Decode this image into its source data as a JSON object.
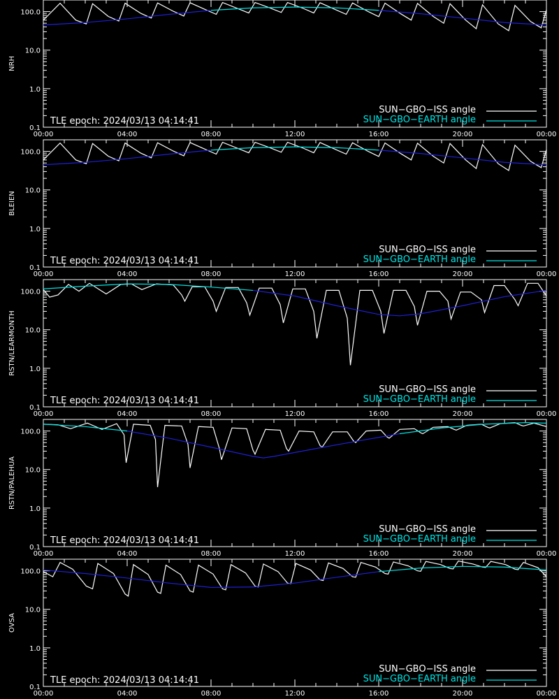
{
  "colors": {
    "background": "#000000",
    "axes": "#ffffff",
    "iss_series": "#ffffff",
    "earth_series_above_threshold": "#00e5e5",
    "earth_series_below_threshold": "#1f1fd6",
    "iss_series_faded": "#8a8a8a"
  },
  "legend": {
    "iss_label": "SUN−GBO−ISS angle",
    "earth_label": "SUN−GBO−EARTH angle"
  },
  "epoch_text": "TLE epoch: 2024/03/13 04:14:41",
  "x_ticks": [
    "00:00",
    "04:00",
    "08:00",
    "12:00",
    "16:00",
    "20:00",
    "00:00"
  ],
  "y_ticks": [
    "100.0",
    "10.0",
    "1.0",
    "0.1"
  ],
  "chart_data": [
    {
      "type": "line",
      "title": "",
      "xlabel": "",
      "ylabel": "NRH",
      "xlim_hours": [
        0,
        24
      ],
      "ylim": [
        0.1,
        200
      ],
      "y_scale": "log",
      "legend_placement": "bottom-right",
      "series": [
        {
          "name": "SUN−GBO−EARTH angle",
          "x_hours": [
            0,
            2,
            4,
            6,
            8,
            10,
            12,
            14,
            16,
            18,
            20,
            22,
            24
          ],
          "values": [
            45,
            52,
            65,
            85,
            108,
            125,
            131,
            125,
            108,
            88,
            68,
            52,
            45
          ]
        },
        {
          "name": "SUN−GBO−ISS angle",
          "x_hours": [
            0,
            0.8,
            1.55,
            2.05,
            2.35,
            3.1,
            3.6,
            3.9,
            4.65,
            5.15,
            5.45,
            6.2,
            6.7,
            7.0,
            7.75,
            8.25,
            8.55,
            9.3,
            9.8,
            10.1,
            10.85,
            11.35,
            11.65,
            12.4,
            12.9,
            13.2,
            13.95,
            14.45,
            14.75,
            15.5,
            16.0,
            16.3,
            17.05,
            17.55,
            17.85,
            18.6,
            19.1,
            19.4,
            20.15,
            20.65,
            20.95,
            21.7,
            22.2,
            22.5,
            23.25,
            23.75,
            24
          ],
          "values": [
            60,
            165,
            60,
            48,
            160,
            75,
            57,
            165,
            90,
            68,
            168,
            102,
            77,
            170,
            112,
            85,
            172,
            118,
            92,
            172,
            122,
            95,
            172,
            121,
            92,
            170,
            112,
            85,
            168,
            100,
            74,
            166,
            88,
            60,
            163,
            75,
            50,
            160,
            60,
            36,
            150,
            48,
            32,
            145,
            55,
            38,
            110
          ]
        }
      ]
    },
    {
      "type": "line",
      "title": "",
      "xlabel": "",
      "ylabel": "BLEIEN",
      "xlim_hours": [
        0,
        24
      ],
      "ylim": [
        0.1,
        200
      ],
      "y_scale": "log",
      "legend_placement": "bottom-right",
      "series": [
        {
          "name": "SUN−GBO−EARTH angle",
          "x_hours": [
            0,
            2,
            4,
            6,
            8,
            10,
            12,
            14,
            16,
            18,
            20,
            22,
            24
          ],
          "values": [
            45,
            52,
            65,
            85,
            108,
            125,
            131,
            125,
            108,
            88,
            68,
            52,
            45
          ]
        },
        {
          "name": "SUN−GBO−ISS angle",
          "x_hours": [
            0,
            0.8,
            1.55,
            2.05,
            2.35,
            3.1,
            3.6,
            3.9,
            4.65,
            5.15,
            5.45,
            6.2,
            6.7,
            7.0,
            7.75,
            8.25,
            8.55,
            9.3,
            9.8,
            10.1,
            10.85,
            11.35,
            11.65,
            12.4,
            12.9,
            13.2,
            13.95,
            14.45,
            14.75,
            15.5,
            16.0,
            16.3,
            17.05,
            17.55,
            17.85,
            18.6,
            19.1,
            19.4,
            20.15,
            20.65,
            20.95,
            21.7,
            22.2,
            22.5,
            23.25,
            23.75,
            24
          ],
          "values": [
            60,
            165,
            60,
            48,
            160,
            75,
            57,
            165,
            90,
            68,
            168,
            102,
            77,
            170,
            112,
            85,
            172,
            118,
            92,
            172,
            122,
            95,
            172,
            121,
            92,
            170,
            112,
            85,
            168,
            100,
            74,
            166,
            88,
            60,
            163,
            75,
            50,
            160,
            60,
            36,
            150,
            48,
            32,
            145,
            55,
            38,
            110
          ]
        }
      ]
    },
    {
      "type": "line",
      "title": "",
      "xlabel": "",
      "ylabel": "RSTN/LEARMONTH",
      "xlim_hours": [
        0,
        24
      ],
      "ylim": [
        0.1,
        200
      ],
      "y_scale": "log",
      "legend_placement": "bottom-right",
      "series": [
        {
          "name": "SUN−GBO−EARTH angle",
          "x_hours": [
            0,
            2,
            4,
            6,
            8,
            10,
            12,
            14,
            16,
            17,
            18,
            20,
            22,
            24
          ],
          "values": [
            115,
            135,
            155,
            150,
            128,
            105,
            75,
            42,
            25,
            23,
            26,
            42,
            72,
            105
          ]
        },
        {
          "name": "SUN−GBO−ISS angle",
          "x_hours": [
            0,
            0.3,
            0.7,
            1.2,
            1.7,
            2.2,
            3.0,
            3.7,
            4.2,
            4.7,
            5.4,
            6.2,
            6.6,
            6.75,
            7.1,
            7.7,
            8.1,
            8.25,
            8.7,
            9.3,
            9.7,
            9.85,
            10.3,
            10.9,
            11.3,
            11.45,
            11.9,
            12.5,
            12.9,
            13.05,
            13.5,
            14.1,
            14.5,
            14.65,
            15.1,
            15.7,
            16.1,
            16.25,
            16.7,
            17.3,
            17.7,
            17.85,
            18.3,
            18.9,
            19.3,
            19.45,
            19.9,
            20.4,
            20.9,
            21.05,
            21.5,
            22.0,
            22.5,
            22.65,
            23.1,
            23.6,
            24
          ],
          "values": [
            110,
            70,
            80,
            150,
            100,
            160,
            85,
            150,
            155,
            110,
            155,
            145,
            80,
            55,
            130,
            130,
            55,
            30,
            125,
            125,
            50,
            24,
            120,
            120,
            45,
            15,
            115,
            115,
            30,
            6,
            105,
            105,
            20,
            1.2,
            105,
            105,
            30,
            8,
            105,
            105,
            40,
            13,
            100,
            100,
            55,
            19,
            95,
            95,
            60,
            28,
            140,
            140,
            60,
            42,
            160,
            160,
            75
          ]
        }
      ]
    },
    {
      "type": "line",
      "title": "",
      "xlabel": "",
      "ylabel": "RSTN/PALEHUA",
      "xlim_hours": [
        0,
        24
      ],
      "ylim": [
        0.1,
        200
      ],
      "y_scale": "log",
      "legend_placement": "bottom-right",
      "series": [
        {
          "name": "SUN−GBO−EARTH angle",
          "x_hours": [
            0,
            2,
            4,
            6,
            8,
            10,
            10.5,
            11,
            13,
            15,
            17,
            19,
            21,
            23,
            24
          ],
          "values": [
            150,
            130,
            100,
            65,
            38,
            22,
            20,
            22,
            35,
            55,
            85,
            120,
            150,
            165,
            160
          ]
        },
        {
          "name": "SUN−GBO−ISS angle",
          "x_hours": [
            0,
            0.7,
            1.3,
            2.1,
            2.8,
            3.5,
            3.85,
            3.95,
            4.3,
            5.1,
            5.35,
            5.45,
            5.8,
            6.6,
            6.9,
            7.0,
            7.4,
            8.1,
            8.4,
            8.5,
            9.0,
            9.7,
            10.0,
            10.1,
            10.6,
            11.3,
            11.6,
            11.7,
            12.2,
            12.9,
            13.2,
            13.3,
            13.8,
            14.5,
            14.8,
            14.9,
            15.4,
            16.1,
            16.4,
            16.5,
            17.0,
            17.7,
            18.0,
            18.1,
            18.6,
            19.3,
            19.6,
            19.7,
            20.2,
            20.9,
            21.2,
            21.3,
            21.8,
            22.5,
            22.8,
            22.9,
            23.4,
            24
          ],
          "values": [
            150,
            145,
            115,
            160,
            110,
            155,
            80,
            15,
            150,
            140,
            60,
            3.5,
            140,
            135,
            45,
            11,
            130,
            125,
            35,
            18,
            120,
            115,
            32,
            25,
            110,
            105,
            35,
            30,
            100,
            95,
            42,
            38,
            95,
            95,
            55,
            50,
            100,
            105,
            70,
            65,
            110,
            115,
            90,
            85,
            125,
            130,
            110,
            105,
            140,
            150,
            125,
            120,
            155,
            165,
            140,
            135,
            160,
            130
          ]
        }
      ]
    },
    {
      "type": "line",
      "title": "",
      "xlabel": "",
      "ylabel": "OVSA",
      "xlim_hours": [
        0,
        24
      ],
      "ylim": [
        0.1,
        200
      ],
      "y_scale": "log",
      "legend_placement": "bottom-right",
      "series": [
        {
          "name": "SUN−GBO−EARTH angle",
          "x_hours": [
            0,
            2,
            4,
            6,
            8,
            10,
            12,
            14,
            16,
            18,
            20,
            22,
            24
          ],
          "values": [
            105,
            85,
            65,
            48,
            37,
            38,
            48,
            68,
            95,
            118,
            130,
            125,
            105
          ]
        },
        {
          "name": "SUN−GBO−ISS angle",
          "x_hours": [
            0,
            0.45,
            0.8,
            1.4,
            2.05,
            2.35,
            2.6,
            3.35,
            3.9,
            4.05,
            4.3,
            5.0,
            5.45,
            5.6,
            5.85,
            6.55,
            7.0,
            7.15,
            7.4,
            8.1,
            8.55,
            8.7,
            8.95,
            9.65,
            10.1,
            10.25,
            10.5,
            11.2,
            11.65,
            11.8,
            12.05,
            12.75,
            13.2,
            13.35,
            13.6,
            14.3,
            14.75,
            14.9,
            15.15,
            15.85,
            16.3,
            16.45,
            16.7,
            17.4,
            17.85,
            18.0,
            18.25,
            18.95,
            19.4,
            19.55,
            19.8,
            20.5,
            20.95,
            21.1,
            21.35,
            22.05,
            22.5,
            22.65,
            22.9,
            23.6,
            24
          ],
          "values": [
            95,
            70,
            165,
            110,
            40,
            34,
            155,
            85,
            25,
            22,
            145,
            80,
            28,
            26,
            140,
            80,
            30,
            28,
            140,
            82,
            34,
            32,
            145,
            88,
            40,
            38,
            150,
            95,
            48,
            46,
            155,
            105,
            58,
            56,
            160,
            115,
            70,
            68,
            165,
            125,
            85,
            82,
            170,
            135,
            100,
            97,
            175,
            145,
            115,
            112,
            180,
            150,
            125,
            122,
            175,
            145,
            110,
            107,
            165,
            120,
            70
          ]
        }
      ]
    }
  ]
}
